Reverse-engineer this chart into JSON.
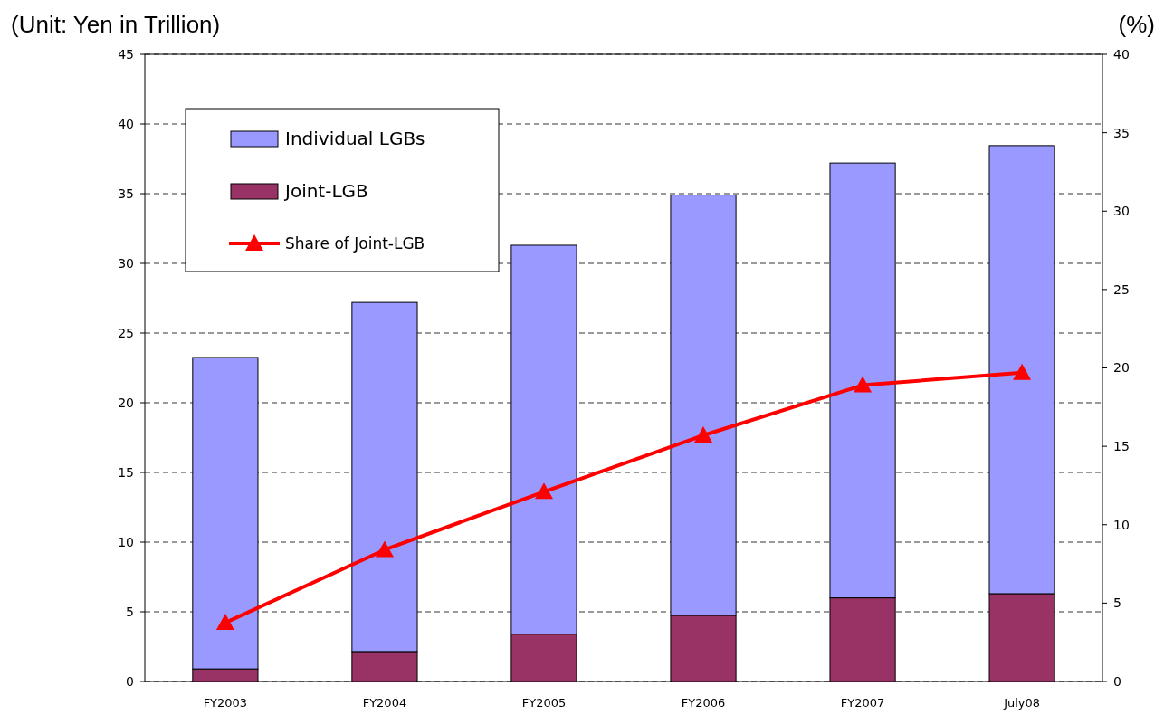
{
  "chart_data": {
    "type": "bar",
    "stacked": true,
    "ylabel": "(Unit: Yen in Trillion)",
    "y2label": "(%)",
    "categories": [
      "FY2003",
      "FY2004",
      "FY2005",
      "FY2006",
      "FY2007",
      "July08"
    ],
    "series": [
      {
        "name": "Joint-LGB",
        "color": "#993366",
        "values": [
          0.9,
          2.15,
          3.4,
          4.75,
          6.0,
          6.3
        ]
      },
      {
        "name": "Individual LGBs",
        "color": "#9999ff",
        "values": [
          22.35,
          25.05,
          27.9,
          30.15,
          31.2,
          32.15
        ]
      },
      {
        "name": "Share of Joint-LGB",
        "type": "line",
        "axis": "y2",
        "color": "#ff0000",
        "marker": "triangle",
        "values": [
          3.75,
          8.4,
          12.1,
          15.7,
          18.9,
          19.7
        ]
      }
    ],
    "ylim": [
      0,
      45
    ],
    "yticks": [
      0,
      5,
      10,
      15,
      20,
      25,
      30,
      35,
      40,
      45
    ],
    "y2lim": [
      0,
      40
    ],
    "y2ticks": [
      0,
      5,
      10,
      15,
      20,
      25,
      30,
      35,
      40
    ],
    "grid": "y",
    "legend": "top left"
  }
}
